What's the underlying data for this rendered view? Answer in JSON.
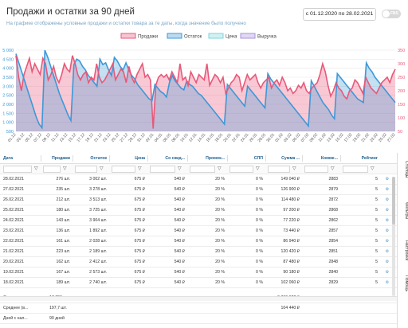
{
  "header": {
    "title": "Продажи и остатки за 90 дней",
    "subtitle": "На графике отображены условные продажи и остатки товара за те даты, когда значение было получено",
    "date_range": "с 01.12.2020 по 28.02.2021",
    "toggle_label": "FBS"
  },
  "colors": {
    "sales": "#e8587a",
    "stock": "#3d98d8",
    "price": "#7fd5dc",
    "revenue": "#a890dd"
  },
  "chart_data": {
    "type": "line",
    "legend_position": "top-center",
    "series": [
      {
        "name": "Продажи"
      },
      {
        "name": "Остаток"
      },
      {
        "name": "Цена"
      },
      {
        "name": "Выручка"
      }
    ],
    "x_labels": [
      "01.12",
      "03.12",
      "05.12",
      "07.12",
      "09.12",
      "11.12",
      "13.12",
      "15.12",
      "17.12",
      "19.12",
      "21.12",
      "23.12",
      "25.12",
      "27.12",
      "29.12",
      "31.12",
      "02.01",
      "04.01",
      "06.01",
      "08.01",
      "10.01",
      "12.01",
      "14.01",
      "16.01",
      "18.01",
      "20.01",
      "22.01",
      "24.01",
      "26.01",
      "28.01",
      "30.01",
      "01.02",
      "03.02",
      "05.02",
      "07.02",
      "09.02",
      "11.02",
      "13.02",
      "15.02",
      "17.02",
      "19.02",
      "21.02",
      "23.02",
      "25.02",
      "27.02"
    ],
    "y_left": {
      "ticks": [
        "500",
        "1 000",
        "1 500",
        "2 000",
        "2 500",
        "3 000",
        "3 500",
        "4 000",
        "4 500",
        "5 000"
      ],
      "range": [
        500,
        5000
      ]
    },
    "y_right": {
      "ticks": [
        "50",
        "100",
        "150",
        "200",
        "250",
        "300",
        "350"
      ],
      "range": [
        50,
        350
      ]
    },
    "stock_values": [
      4800,
      4300,
      3800,
      3300,
      2800,
      2300,
      1800,
      1300,
      900,
      700,
      5000,
      4600,
      4100,
      3600,
      3100,
      2600,
      2200,
      1800,
      1400,
      1100,
      4200,
      4500,
      4400,
      4100,
      3900,
      3600,
      3400,
      3200,
      3000,
      4500,
      4200,
      4300,
      3900,
      3600,
      4600,
      4400,
      4100,
      3900,
      4300,
      3900,
      3600,
      3400,
      3100,
      2900,
      2700,
      2500,
      2300,
      2200,
      3100,
      2900,
      2700,
      2600,
      2400,
      3200,
      3600,
      3300,
      3100,
      2900,
      2800,
      3300,
      3100,
      3000,
      2800,
      2600,
      2500,
      2300,
      2100,
      1900,
      1700,
      1500,
      1300,
      1100,
      900,
      3100,
      2900,
      2700,
      2500,
      2300,
      2100,
      1900,
      3000,
      2800,
      2600,
      2400,
      2200,
      2000,
      1800,
      3700,
      3400,
      3200,
      3000,
      2800,
      2600,
      2400,
      2200,
      2000,
      1800,
      1600,
      1400,
      1200,
      1000,
      800,
      3300,
      3000,
      2700,
      2400,
      2100,
      1900,
      1700,
      1400,
      1200,
      3700,
      3500,
      3300,
      3100,
      2900,
      2700,
      2500,
      2300,
      2200,
      2100,
      4300,
      4000,
      3800,
      3500,
      3300,
      3100,
      2900,
      2700,
      2500,
      2300,
      2100
    ],
    "sales_values": [
      330,
      250,
      200,
      260,
      290,
      320,
      270,
      300,
      280,
      260,
      320,
      300,
      240,
      260,
      290,
      250,
      230,
      260,
      300,
      280,
      270,
      330,
      300,
      260,
      240,
      260,
      270,
      230,
      250,
      240,
      300,
      250,
      230,
      240,
      260,
      280,
      300,
      240,
      260,
      280,
      270,
      230,
      290,
      250,
      230,
      260,
      280,
      300,
      250,
      260,
      240,
      60,
      220,
      250,
      260,
      250,
      260,
      240,
      270,
      250,
      230,
      300,
      240,
      250,
      220,
      270,
      250,
      230,
      260,
      250,
      240,
      300,
      220,
      240,
      260,
      250,
      230,
      250,
      190,
      210,
      230,
      240,
      260,
      250,
      200,
      230,
      260,
      240,
      250,
      260,
      230,
      210,
      230,
      240,
      250,
      210,
      230,
      240,
      220,
      250,
      230,
      200,
      210,
      190,
      200,
      220,
      210,
      230,
      200,
      190,
      210,
      220,
      230,
      260,
      300,
      270,
      220,
      180,
      200,
      230,
      210,
      200,
      180,
      170,
      200,
      210,
      240,
      230,
      210,
      190,
      250,
      230,
      210,
      200,
      190,
      210,
      230,
      240,
      250,
      230,
      260,
      280
    ]
  },
  "grid": {
    "columns": [
      "Дата",
      "Продажи",
      "Остаток",
      "Цена",
      "Со скид...",
      "Промок...",
      "СПП",
      "Сумма ...",
      "Комме...",
      "Рейтинг"
    ],
    "rows": [
      [
        "28.02.2021",
        "276 шт.",
        "3 002 шт.",
        "675 ₽",
        "540 ₽",
        "20 %",
        "0 %",
        "149 040 ₽",
        "2883",
        "5"
      ],
      [
        "27.02.2021",
        "235 шт.",
        "3 278 шт.",
        "675 ₽",
        "540 ₽",
        "20 %",
        "0 %",
        "126 900 ₽",
        "2879",
        "5"
      ],
      [
        "26.02.2021",
        "212 шт.",
        "3 513 шт.",
        "675 ₽",
        "540 ₽",
        "20 %",
        "0 %",
        "114 480 ₽",
        "2872",
        "5"
      ],
      [
        "25.02.2021",
        "180 шт.",
        "3 725 шт.",
        "675 ₽",
        "540 ₽",
        "20 %",
        "0 %",
        "97 200 ₽",
        "2868",
        "5"
      ],
      [
        "24.02.2021",
        "143 шт.",
        "3 904 шт.",
        "675 ₽",
        "540 ₽",
        "20 %",
        "0 %",
        "77 220 ₽",
        "2862",
        "5"
      ],
      [
        "23.02.2021",
        "136 шт.",
        "1 892 шт.",
        "675 ₽",
        "540 ₽",
        "20 %",
        "0 %",
        "73 440 ₽",
        "2857",
        "5"
      ],
      [
        "22.02.2021",
        "161 шт.",
        "2 028 шт.",
        "675 ₽",
        "540 ₽",
        "20 %",
        "0 %",
        "86 940 ₽",
        "2854",
        "5"
      ],
      [
        "21.02.2021",
        "223 шт.",
        "2 189 шт.",
        "675 ₽",
        "540 ₽",
        "20 %",
        "0 %",
        "120 420 ₽",
        "2851",
        "5"
      ],
      [
        "20.02.2021",
        "162 шт.",
        "2 412 шт.",
        "675 ₽",
        "540 ₽",
        "20 %",
        "0 %",
        "87 480 ₽",
        "2848",
        "5"
      ],
      [
        "19.02.2021",
        "167 шт.",
        "2 573 шт.",
        "675 ₽",
        "540 ₽",
        "20 %",
        "0 %",
        "90 180 ₽",
        "2840",
        "5"
      ],
      [
        "18.02.2021",
        "189 шт.",
        "2 740 шт.",
        "675 ₽",
        "540 ₽",
        "20 %",
        "0 %",
        "102 060 ₽",
        "2829",
        "5"
      ]
    ],
    "summary": [
      {
        "label": "Суммарно ...",
        "sales": "17 796 шт.",
        "sum": "9 399 622 ₽"
      },
      {
        "label": "Среднее (в...",
        "sales": "197,7 шт.",
        "sum": "104 440 ₽"
      },
      {
        "label": "Дней с нал...",
        "sales": "90 дней",
        "sum": ""
      }
    ],
    "side_tabs": [
      "Столбцы",
      "Фильтры",
      "Настройки",
      "Помощь"
    ]
  }
}
